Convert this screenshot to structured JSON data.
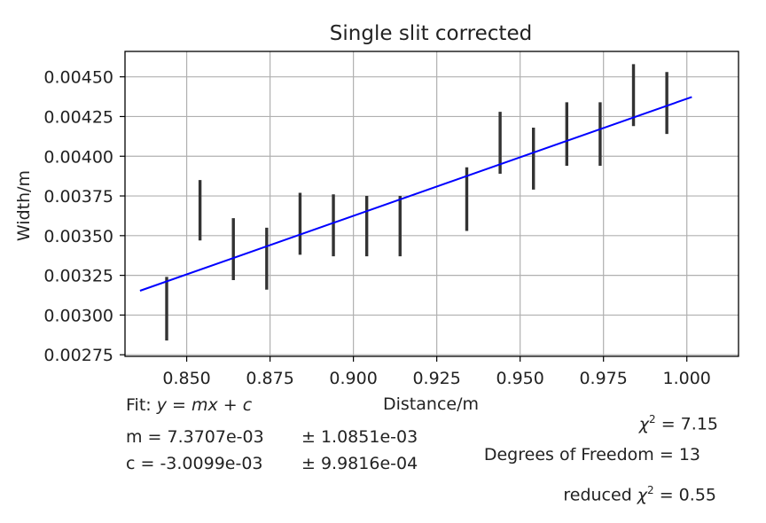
{
  "chart_data": {
    "type": "scatter",
    "title": "Single slit corrected",
    "xlabel": "Distance/m",
    "ylabel": "Width/m",
    "xlim": [
      0.8315,
      1.0155
    ],
    "ylim": [
      0.00274,
      0.00466
    ],
    "xticks": [
      0.85,
      0.875,
      0.9,
      0.925,
      0.95,
      0.975,
      1.0
    ],
    "xtick_labels": [
      "0.850",
      "0.875",
      "0.900",
      "0.925",
      "0.950",
      "0.975",
      "1.000"
    ],
    "yticks": [
      0.00275,
      0.003,
      0.00325,
      0.0035,
      0.00375,
      0.004,
      0.00425,
      0.0045
    ],
    "ytick_labels": [
      "0.00275",
      "0.00300",
      "0.00325",
      "0.00350",
      "0.00375",
      "0.00400",
      "0.00425",
      "0.00450"
    ],
    "grid": true,
    "series": [
      {
        "name": "data",
        "kind": "errorbar",
        "color": "#333333",
        "x": [
          0.844,
          0.854,
          0.864,
          0.874,
          0.884,
          0.894,
          0.904,
          0.914,
          0.934,
          0.944,
          0.954,
          0.964,
          0.974,
          0.984,
          0.994
        ],
        "y_low": [
          0.00284,
          0.00347,
          0.00322,
          0.00316,
          0.00338,
          0.00337,
          0.00337,
          0.00337,
          0.00353,
          0.00389,
          0.00379,
          0.00394,
          0.00394,
          0.00419,
          0.00414
        ],
        "y_high": [
          0.00324,
          0.00385,
          0.00361,
          0.00355,
          0.00377,
          0.00376,
          0.00375,
          0.00375,
          0.00393,
          0.00428,
          0.00418,
          0.00434,
          0.00434,
          0.00458,
          0.00453
        ]
      },
      {
        "name": "fit",
        "kind": "line",
        "color": "#0000ff",
        "x": [
          0.836,
          1.0015
        ],
        "y": [
          0.003153,
          0.004373
        ]
      }
    ]
  },
  "fit_info": {
    "fit_prefix": "Fit: ",
    "fit_equation": "y = mx + c",
    "m_text": "m = 7.3707e-03",
    "m_err": "± 1.0851e-03",
    "c_text": "c = -3.0099e-03",
    "c_err": "± 9.9816e-04",
    "chi_symbol": "χ",
    "sq": "2",
    "chi_value": " = 7.15",
    "dof_text": "Degrees of Freedom = 13",
    "reduced_prefix": "reduced ",
    "reduced_value": " = 0.55"
  }
}
